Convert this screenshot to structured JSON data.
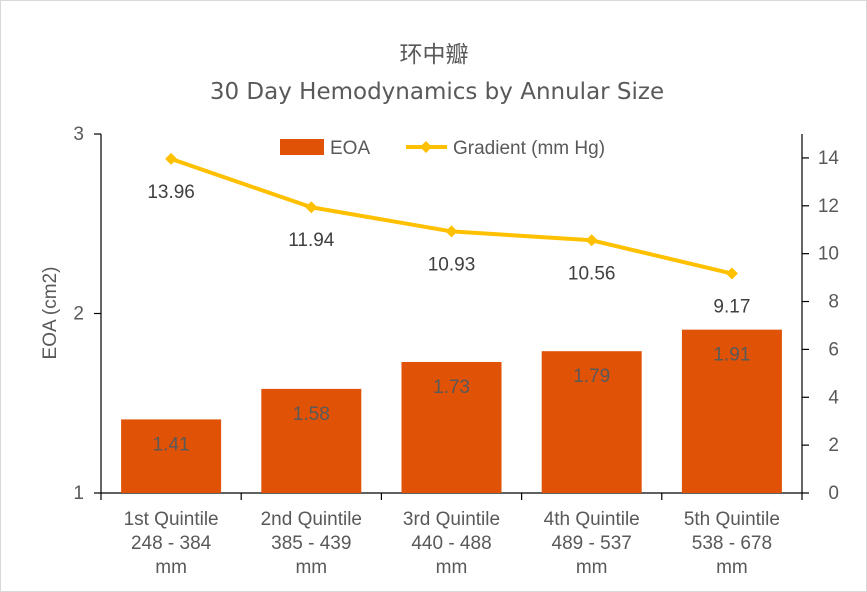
{
  "chart_data": {
    "type": "bar",
    "title": "环中瓣",
    "subtitle": "30 Day Hemodynamics by Annular Size",
    "categories": [
      [
        "1st Quintile",
        "248 - 384",
        "mm"
      ],
      [
        "2nd Quintile",
        "385 - 439",
        "mm"
      ],
      [
        "3rd Quintile",
        "440 - 488",
        "mm"
      ],
      [
        "4th Quintile",
        "489 - 537",
        "mm"
      ],
      [
        "5th Quintile",
        "538 - 678",
        "mm"
      ]
    ],
    "series": [
      {
        "name": "EOA",
        "type": "bar",
        "axis": "left",
        "values": [
          1.41,
          1.58,
          1.73,
          1.79,
          1.91
        ],
        "data_labels": [
          "1.41",
          "1.58",
          "1.73",
          "1.79",
          "1.91"
        ],
        "color": "#E05206"
      },
      {
        "name": "Gradient (mm Hg)",
        "type": "line",
        "axis": "right",
        "values": [
          13.96,
          11.94,
          10.93,
          10.56,
          9.17
        ],
        "data_labels": [
          "13.96",
          "11.94",
          "10.93",
          "10.56",
          "9.17"
        ],
        "color": "#FFC000"
      }
    ],
    "y_left": {
      "label": "EOA (cm2)",
      "min": 1,
      "max": 3,
      "ticks": [
        "1",
        "2",
        "3"
      ]
    },
    "y_right": {
      "label": "",
      "min": 0,
      "max": 15,
      "ticks": [
        "0",
        "2",
        "4",
        "6",
        "8",
        "10",
        "12",
        "14"
      ]
    },
    "grid": false,
    "legend_position": "top"
  }
}
